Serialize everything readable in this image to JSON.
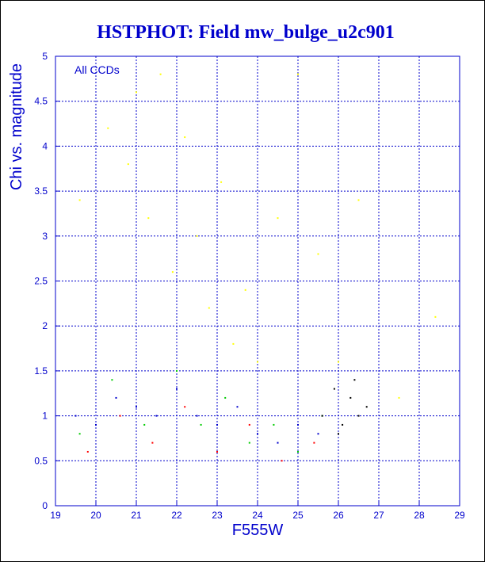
{
  "chart_data": {
    "type": "scatter",
    "title": "HSTPHOT: Field mw_bulge_u2c901",
    "xlabel": "F555W",
    "ylabel": "Chi vs. magnitude",
    "annotation": "All CCDs",
    "xlim": [
      19,
      29
    ],
    "ylim": [
      0,
      5
    ],
    "xticks": [
      "19",
      "20",
      "21",
      "22",
      "23",
      "24",
      "25",
      "26",
      "27",
      "28",
      "29"
    ],
    "yticks": [
      "0",
      "0.5",
      "1",
      "1.5",
      "2",
      "2.5",
      "3",
      "3.5",
      "4",
      "4.5",
      "5"
    ],
    "grid": true,
    "series": [
      {
        "color": "#ffff00",
        "points": [
          [
            19.6,
            3.4
          ],
          [
            20.3,
            4.2
          ],
          [
            20.8,
            3.8
          ],
          [
            21.0,
            4.6
          ],
          [
            21.3,
            3.2
          ],
          [
            21.6,
            4.8
          ],
          [
            21.9,
            2.6
          ],
          [
            22.2,
            4.1
          ],
          [
            22.5,
            3.0
          ],
          [
            22.8,
            2.2
          ],
          [
            23.1,
            3.6
          ],
          [
            23.4,
            1.8
          ],
          [
            23.7,
            2.4
          ],
          [
            24.0,
            1.6
          ],
          [
            24.5,
            3.2
          ],
          [
            25.0,
            4.8
          ],
          [
            25.5,
            2.8
          ],
          [
            26.0,
            1.6
          ],
          [
            26.5,
            3.4
          ],
          [
            27.5,
            1.2
          ],
          [
            28.4,
            2.1
          ]
        ]
      },
      {
        "color": "#0000cc",
        "points": [
          [
            19.5,
            1.0
          ],
          [
            20.0,
            0.9
          ],
          [
            20.5,
            1.2
          ],
          [
            21.0,
            1.1
          ],
          [
            21.5,
            1.0
          ],
          [
            22.0,
            1.3
          ],
          [
            22.5,
            1.0
          ],
          [
            23.0,
            0.9
          ],
          [
            23.5,
            1.1
          ],
          [
            24.0,
            0.8
          ],
          [
            24.5,
            0.7
          ],
          [
            25.0,
            0.9
          ],
          [
            25.5,
            0.8
          ]
        ]
      },
      {
        "color": "#00cc00",
        "points": [
          [
            19.6,
            0.8
          ],
          [
            20.4,
            1.4
          ],
          [
            21.2,
            0.9
          ],
          [
            22.0,
            1.5
          ],
          [
            22.6,
            0.9
          ],
          [
            23.2,
            1.2
          ],
          [
            23.8,
            0.7
          ],
          [
            24.4,
            0.9
          ],
          [
            25.0,
            0.6
          ],
          [
            25.6,
            1.0
          ]
        ]
      },
      {
        "color": "#ff0000",
        "points": [
          [
            19.8,
            0.6
          ],
          [
            20.6,
            1.0
          ],
          [
            21.4,
            0.7
          ],
          [
            22.2,
            1.1
          ],
          [
            23.0,
            0.6
          ],
          [
            23.8,
            0.9
          ],
          [
            24.6,
            0.5
          ],
          [
            25.4,
            0.7
          ]
        ]
      },
      {
        "color": "#000000",
        "points": [
          [
            25.6,
            1.0
          ],
          [
            25.9,
            1.3
          ],
          [
            26.1,
            0.9
          ],
          [
            26.3,
            1.2
          ],
          [
            26.5,
            1.0
          ],
          [
            26.7,
            1.1
          ],
          [
            26.0,
            0.8
          ],
          [
            26.4,
            1.4
          ]
        ]
      }
    ]
  }
}
